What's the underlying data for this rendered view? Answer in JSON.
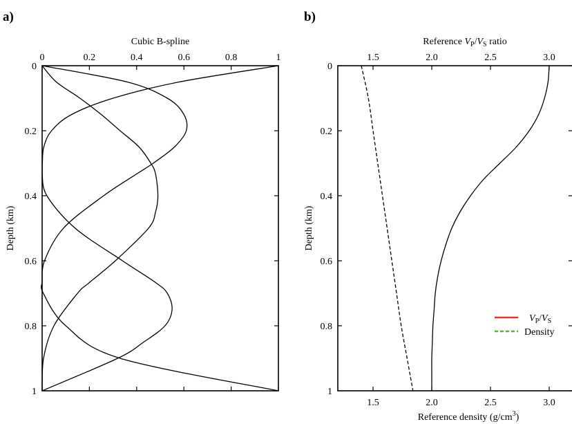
{
  "chart_data": [
    {
      "type": "line",
      "panel_label": "a)",
      "x_axis_top": {
        "title": "Cubic B-spline",
        "ticks": [
          0,
          0.2,
          0.4,
          0.6,
          0.8,
          1
        ],
        "tick_labels": [
          "0",
          "0.2",
          "0.4",
          "0.6",
          "0.8",
          "1"
        ],
        "range": [
          0,
          1
        ]
      },
      "y_axis": {
        "title": "Depth (km)",
        "ticks": [
          0,
          0.2,
          0.4,
          0.6,
          0.8,
          1
        ],
        "tick_labels": [
          "0",
          "0.2",
          "0.4",
          "0.6",
          "0.8",
          "1"
        ],
        "range": [
          0,
          1
        ],
        "inverted": true
      },
      "line_color": "#000000",
      "series": [
        {
          "depth": [
            0,
            0.05,
            0.1,
            0.15,
            0.2,
            0.25,
            0.3,
            0.333
          ],
          "value": [
            1,
            0.58,
            0.3,
            0.125,
            0.04,
            0.007,
            0.001,
            0
          ]
        },
        {
          "depth": [
            0,
            0.05,
            0.1,
            0.15,
            0.2,
            0.25,
            0.3,
            0.333,
            0.4,
            0.5,
            0.6,
            0.667
          ],
          "value": [
            0,
            0.36,
            0.53,
            0.6,
            0.61,
            0.56,
            0.47,
            0.4,
            0.26,
            0.09,
            0.01,
            0
          ]
        },
        {
          "depth": [
            0,
            0.05,
            0.1,
            0.15,
            0.2,
            0.25,
            0.3,
            0.333,
            0.4,
            0.45,
            0.5,
            0.6,
            0.667,
            0.7,
            0.8,
            0.9,
            1
          ],
          "value": [
            0,
            0.06,
            0.16,
            0.25,
            0.33,
            0.41,
            0.46,
            0.48,
            0.49,
            0.48,
            0.45,
            0.31,
            0.2,
            0.15,
            0.05,
            0.006,
            0
          ]
        },
        {
          "depth": [
            0.333,
            0.4,
            0.5,
            0.6,
            0.667,
            0.7,
            0.75,
            0.8,
            0.85,
            0.9,
            1
          ],
          "value": [
            0,
            0.02,
            0.14,
            0.34,
            0.48,
            0.53,
            0.55,
            0.52,
            0.43,
            0.32,
            0
          ]
        },
        {
          "depth": [
            0.667,
            0.7,
            0.8,
            0.9,
            1
          ],
          "value": [
            0,
            0.005,
            0.1,
            0.33,
            1
          ]
        }
      ]
    },
    {
      "type": "line",
      "panel_label": "b)",
      "x_axis_top": {
        "title_parts": [
          "Reference ",
          "V",
          "P",
          "/",
          "V",
          "S",
          " ratio"
        ],
        "ticks": [
          1.5,
          2.0,
          2.5,
          3.0
        ],
        "tick_labels": [
          "1.5",
          "2.0",
          "2.5",
          "3.0"
        ],
        "range": [
          1.2,
          3.2
        ]
      },
      "x_axis_bottom": {
        "title_parts": [
          "Reference density (g/cm",
          "3",
          ")"
        ],
        "ticks": [
          1.5,
          2.0,
          2.5,
          3.0
        ],
        "tick_labels": [
          "1.5",
          "2.0",
          "2.5",
          "3.0"
        ],
        "range": [
          1.2,
          3.2
        ]
      },
      "y_axis": {
        "title": "Depth (km)",
        "ticks": [
          0,
          0.2,
          0.4,
          0.6,
          0.8,
          1
        ],
        "tick_labels": [
          "0",
          "0.2",
          "0.4",
          "0.6",
          "0.8",
          "1"
        ],
        "range": [
          0,
          1
        ],
        "inverted": true
      },
      "legend": {
        "placement": "lower-right",
        "entries": [
          {
            "label_parts": [
              "V",
              "P",
              "/",
              "V",
              "S"
            ],
            "color": "#e8322a",
            "dash": "solid"
          },
          {
            "label": "Density",
            "color": "#5ab43c",
            "dash": "dashed"
          }
        ]
      },
      "series": [
        {
          "color": "#e8322a",
          "dash": "solid",
          "depth": [
            0,
            0.05,
            0.1,
            0.15,
            0.2,
            0.25,
            0.3,
            0.35,
            0.4,
            0.45,
            0.5,
            0.55,
            0.6,
            0.65,
            0.7,
            0.75,
            0.8,
            0.85,
            0.9,
            0.95,
            1
          ],
          "value": [
            3.0,
            2.99,
            2.96,
            2.91,
            2.83,
            2.72,
            2.58,
            2.44,
            2.33,
            2.24,
            2.17,
            2.12,
            2.08,
            2.05,
            2.03,
            2.02,
            2.01,
            2.005,
            2.0,
            2.0,
            2.0
          ]
        },
        {
          "color": "#5ab43c",
          "dash": "dashed",
          "depth": [
            0,
            0.1,
            0.2,
            0.3,
            0.4,
            0.5,
            0.6,
            0.7,
            0.8,
            0.9,
            1
          ],
          "value": [
            1.4,
            1.46,
            1.5,
            1.54,
            1.58,
            1.62,
            1.66,
            1.7,
            1.74,
            1.79,
            1.84
          ]
        }
      ]
    }
  ]
}
